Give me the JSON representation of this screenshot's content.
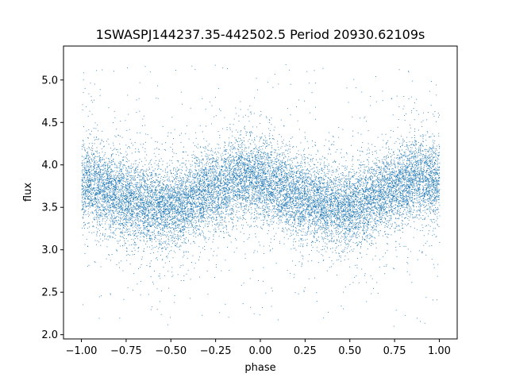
{
  "chart_data": {
    "type": "scatter",
    "title": "1SWASPJ144237.35-442502.5 Period 20930.62109s",
    "xlabel": "phase",
    "ylabel": "flux",
    "xlim": [
      -1.1,
      1.1
    ],
    "ylim": [
      1.95,
      5.4
    ],
    "xticks": [
      -1.0,
      -0.75,
      -0.5,
      -0.25,
      0.0,
      0.25,
      0.5,
      0.75,
      1.0
    ],
    "xtick_labels": [
      "−1.00",
      "−0.75",
      "−0.50",
      "−0.25",
      "0.00",
      "0.25",
      "0.50",
      "0.75",
      "1.00"
    ],
    "yticks": [
      2.0,
      2.5,
      3.0,
      3.5,
      4.0,
      4.5,
      5.0
    ],
    "ytick_labels": [
      "2.0",
      "2.5",
      "3.0",
      "3.5",
      "4.0",
      "4.5",
      "5.0"
    ],
    "grid": false,
    "legend": "none",
    "series": [
      {
        "marker_color": "#1f77b4",
        "x_range": [
          -1.0,
          1.0
        ],
        "profile_phase": [
          -1.0,
          -0.75,
          -0.55,
          -0.5,
          -0.25,
          -0.1,
          0.0,
          0.25,
          0.45,
          0.5,
          0.75,
          0.9,
          1.0
        ],
        "profile_flux": [
          3.8,
          3.6,
          3.5,
          3.5,
          3.72,
          3.85,
          3.82,
          3.6,
          3.5,
          3.5,
          3.72,
          3.85,
          3.82
        ],
        "scatter_sigma": 0.22,
        "outlier_flux_range": [
          2.1,
          5.2
        ],
        "point_count": 16000
      }
    ]
  }
}
